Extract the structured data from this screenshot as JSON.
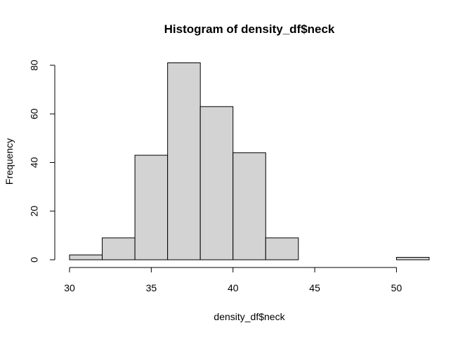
{
  "chart_data": {
    "type": "bar",
    "title": "Histogram of density_df$neck",
    "xlabel": "density_df$neck",
    "ylabel": "Frequency",
    "bins": [
      {
        "start": 30,
        "end": 32,
        "count": 2
      },
      {
        "start": 32,
        "end": 34,
        "count": 9
      },
      {
        "start": 34,
        "end": 36,
        "count": 43
      },
      {
        "start": 36,
        "end": 38,
        "count": 81
      },
      {
        "start": 38,
        "end": 40,
        "count": 63
      },
      {
        "start": 40,
        "end": 42,
        "count": 44
      },
      {
        "start": 42,
        "end": 44,
        "count": 9
      },
      {
        "start": 44,
        "end": 46,
        "count": 0
      },
      {
        "start": 46,
        "end": 48,
        "count": 0
      },
      {
        "start": 48,
        "end": 50,
        "count": 0
      },
      {
        "start": 50,
        "end": 52,
        "count": 1
      }
    ],
    "xlim": [
      30,
      52
    ],
    "ylim": [
      0,
      81
    ],
    "x_ticks": [
      30,
      35,
      40,
      45,
      50
    ],
    "y_ticks": [
      0,
      20,
      40,
      60,
      80
    ],
    "bar_color": "#d3d3d3",
    "grid": false,
    "legend": "none"
  }
}
